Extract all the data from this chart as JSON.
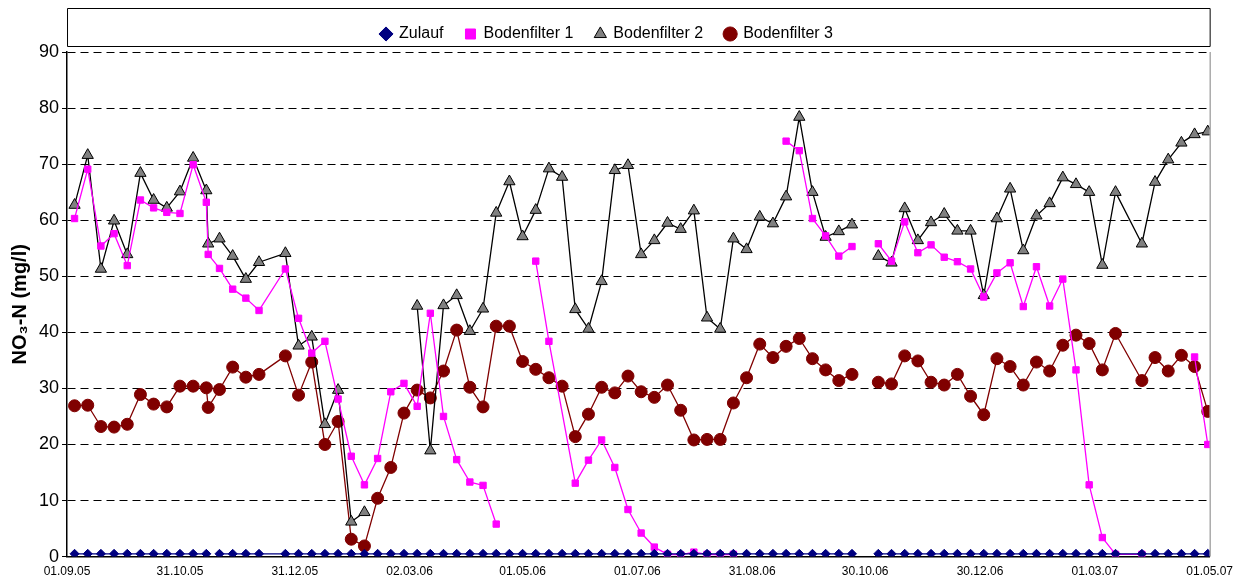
{
  "chart_data": {
    "type": "line",
    "ylabel": "NO₃-N (mg/l)",
    "x": [
      "2005-09-05",
      "2005-09-12",
      "2005-09-19",
      "2005-09-26",
      "2005-10-03",
      "2005-10-10",
      "2005-10-17",
      "2005-10-24",
      "2005-10-31",
      "2005-11-07",
      "2005-11-14",
      "2005-11-15",
      "2005-11-21",
      "2005-11-28",
      "2005-12-05",
      "2005-12-12",
      "2005-12-26",
      "2006-01-02",
      "2006-01-09",
      "2006-01-16",
      "2006-01-23",
      "2006-01-30",
      "2006-02-06",
      "2006-02-13",
      "2006-02-20",
      "2006-02-27",
      "2006-03-06",
      "2006-03-13",
      "2006-03-20",
      "2006-03-27",
      "2006-04-03",
      "2006-04-10",
      "2006-04-17",
      "2006-04-24",
      "2006-05-01",
      "2006-05-08",
      "2006-05-15",
      "2006-05-22",
      "2006-05-29",
      "2006-06-05",
      "2006-06-12",
      "2006-06-19",
      "2006-06-26",
      "2006-07-03",
      "2006-07-10",
      "2006-07-17",
      "2006-07-24",
      "2006-07-31",
      "2006-08-07",
      "2006-08-14",
      "2006-08-21",
      "2006-08-28",
      "2006-09-04",
      "2006-09-11",
      "2006-09-18",
      "2006-09-25",
      "2006-10-02",
      "2006-10-09",
      "2006-10-16",
      "2006-10-23",
      "2006-10-30",
      "2006-11-06",
      "2006-11-13",
      "2006-11-20",
      "2006-11-27",
      "2006-12-04",
      "2006-12-11",
      "2006-12-18",
      "2006-12-25",
      "2007-01-01",
      "2007-01-08",
      "2007-01-15",
      "2007-01-22",
      "2007-01-29",
      "2007-02-05",
      "2007-02-12",
      "2007-02-19",
      "2007-02-26",
      "2007-03-05",
      "2007-03-12",
      "2007-03-26",
      "2007-04-02",
      "2007-04-09",
      "2007-04-16",
      "2007-04-23",
      "2007-04-30"
    ],
    "series": [
      {
        "name": "Zulauf",
        "color": "#000080",
        "marker": "diamond",
        "values": [
          0.5,
          0.5,
          0.5,
          0.5,
          0.5,
          0.5,
          0.5,
          0.5,
          0.5,
          0.5,
          0.5,
          null,
          0.5,
          0.5,
          0.5,
          0.5,
          0.5,
          0.5,
          0.5,
          0.5,
          0.5,
          0.5,
          0.5,
          0.5,
          0.5,
          0.5,
          0.5,
          0.5,
          0.5,
          0.5,
          0.5,
          0.5,
          0.5,
          0.5,
          0.5,
          0.5,
          0.5,
          0.5,
          0.5,
          0.5,
          0.5,
          0.5,
          0.5,
          0.5,
          0.5,
          0.5,
          0.5,
          0.5,
          0.5,
          0.5,
          0.5,
          0.5,
          0.5,
          0.5,
          0.5,
          0.5,
          0.5,
          0.5,
          0.5,
          0.5,
          null,
          0.5,
          0.5,
          0.5,
          0.5,
          0.5,
          0.5,
          0.5,
          0.5,
          0.5,
          0.5,
          0.5,
          0.5,
          0.5,
          0.5,
          0.5,
          0.5,
          0.5,
          0.5,
          0.5,
          0.5,
          0.5,
          0.5,
          0.5,
          0.5,
          0.5
        ]
      },
      {
        "name": "Bodenfilter 1",
        "color": "#ff00ff",
        "marker": "square",
        "x": [
          "2005-09-05",
          "2005-09-12",
          "2005-09-19",
          "2005-09-26",
          "2005-10-03",
          "2005-10-10",
          "2005-10-17",
          "2005-10-24",
          "2005-10-31",
          "2005-11-07",
          "2005-11-14",
          "2005-11-15",
          "2005-11-21",
          "2005-11-28",
          "2005-12-05",
          "2005-12-12",
          "2005-12-26",
          "2006-01-02",
          "2006-01-09",
          "2006-01-16",
          "2006-01-23",
          "2006-01-30",
          "2006-02-06",
          "2006-02-13",
          "2006-02-20",
          "2006-02-27",
          "2006-03-06",
          "2006-03-13",
          "2006-03-20",
          "2006-03-27",
          "2006-04-03",
          "2006-04-10",
          "2006-04-17",
          "2006-04-24",
          "2006-05-01",
          "2006-05-08",
          "2006-05-15",
          "2006-05-29",
          "2006-06-05",
          "2006-06-12",
          "2006-06-19",
          "2006-06-26",
          "2006-07-03",
          "2006-07-10",
          "2006-07-17",
          "2006-07-24",
          "2006-07-31",
          "2006-08-07",
          "2006-08-14",
          "2006-08-21",
          "2006-08-28",
          "2006-09-04",
          "2006-09-11",
          "2006-09-18",
          "2006-09-25",
          "2006-10-02",
          "2006-10-09",
          "2006-10-16",
          "2006-10-23",
          "2006-10-30",
          "2006-11-06",
          "2006-11-13",
          "2006-11-20",
          "2006-11-27",
          "2006-12-04",
          "2006-12-11",
          "2006-12-18",
          "2006-12-25",
          "2007-01-01",
          "2007-01-08",
          "2007-01-15",
          "2007-01-22",
          "2007-01-29",
          "2007-02-05",
          "2007-02-12",
          "2007-02-19",
          "2007-02-26",
          "2007-03-05",
          "2007-03-12",
          "2007-03-26",
          "2007-04-02",
          "2007-04-09",
          "2007-04-16",
          "2007-04-23",
          "2007-04-30"
        ],
        "values": [
          60.3,
          69.1,
          55.4,
          57.6,
          51.9,
          63.6,
          62.2,
          61.4,
          61.2,
          69.9,
          63.2,
          53.9,
          51.4,
          47.7,
          46.1,
          43.9,
          51.3,
          42.5,
          36.3,
          38.4,
          28.1,
          17.9,
          12.8,
          17.5,
          29.4,
          30.9,
          26.8,
          43.4,
          25.0,
          17.3,
          13.3,
          12.7,
          5.8,
          null,
          null,
          52.7,
          38.4,
          13.1,
          17.2,
          20.8,
          15.9,
          8.4,
          4.2,
          1.7,
          0.4,
          0.3,
          0.8,
          0.4,
          0.3,
          0.4,
          null,
          null,
          null,
          74.1,
          72.4,
          60.3,
          57.2,
          53.6,
          55.3,
          null,
          55.8,
          52.7,
          59.7,
          54.2,
          55.6,
          53.4,
          52.6,
          51.3,
          46.3,
          50.6,
          52.4,
          44.6,
          51.7,
          44.7,
          49.5,
          33.3,
          12.8,
          3.4,
          0.4,
          0.4,
          null,
          null,
          null,
          35.6,
          20.0
        ]
      },
      {
        "name": "Bodenfilter 2",
        "color": "#000000",
        "marker": "triangle",
        "values": [
          62.7,
          71.6,
          51.3,
          59.9,
          53.9,
          68.4,
          63.6,
          62.2,
          65.1,
          71.1,
          65.3,
          55.8,
          56.7,
          53.6,
          49.5,
          52.5,
          54.1,
          37.6,
          39.2,
          23.6,
          29.7,
          6.2,
          7.9,
          null,
          null,
          null,
          44.7,
          18.9,
          44.8,
          46.6,
          40.2,
          44.2,
          61.3,
          66.9,
          57.1,
          61.8,
          69.2,
          67.7,
          44.1,
          40.6,
          49.1,
          68.9,
          69.8,
          53.9,
          56.4,
          59.5,
          58.4,
          61.7,
          42.6,
          40.6,
          56.7,
          54.8,
          60.6,
          59.4,
          64.2,
          78.4,
          65.0,
          57.0,
          58.0,
          59.2,
          null,
          53.6,
          52.4,
          62.1,
          56.4,
          59.6,
          61.1,
          58.1,
          58.1,
          46.6,
          60.3,
          65.6,
          54.6,
          60.8,
          63.0,
          67.6,
          66.4,
          65.0,
          52.0,
          65.0,
          55.8,
          66.8,
          70.8,
          73.8,
          75.3,
          75.8
        ]
      },
      {
        "name": "Bodenfilter 3",
        "color": "#800000",
        "marker": "circle",
        "values": [
          26.9,
          27.0,
          23.2,
          23.1,
          23.6,
          28.9,
          27.2,
          26.7,
          30.4,
          30.4,
          30.1,
          26.6,
          29.8,
          33.8,
          32.0,
          32.5,
          35.8,
          28.8,
          34.7,
          20.0,
          24.1,
          3.1,
          1.9,
          10.4,
          15.9,
          25.6,
          29.7,
          28.3,
          33.1,
          40.4,
          30.2,
          26.7,
          41.1,
          41.1,
          34.8,
          33.4,
          31.9,
          30.4,
          21.4,
          25.4,
          30.2,
          29.2,
          32.2,
          29.4,
          28.4,
          30.6,
          26.1,
          20.8,
          20.9,
          20.9,
          27.4,
          31.9,
          37.9,
          35.5,
          37.5,
          38.9,
          35.3,
          33.3,
          31.4,
          32.5,
          null,
          31.1,
          30.8,
          35.8,
          34.9,
          31.1,
          30.6,
          32.5,
          28.6,
          25.3,
          35.3,
          33.9,
          30.6,
          34.7,
          33.1,
          37.7,
          39.5,
          38.0,
          33.3,
          39.8,
          31.4,
          35.5,
          33.1,
          35.9,
          33.9,
          25.9
        ]
      }
    ],
    "xlim": [
      "2005-09-01",
      "2007-05-01"
    ],
    "xticks": [
      {
        "value": "2005-09-01",
        "label": "01.09.05"
      },
      {
        "value": "2005-10-31",
        "label": "31.10.05"
      },
      {
        "value": "2005-12-31",
        "label": "31.12.05"
      },
      {
        "value": "2006-03-02",
        "label": "02.03.06"
      },
      {
        "value": "2006-05-01",
        "label": "01.05.06"
      },
      {
        "value": "2006-07-01",
        "label": "01.07.06"
      },
      {
        "value": "2006-08-31",
        "label": "31.08.06"
      },
      {
        "value": "2006-10-30",
        "label": "30.10.06"
      },
      {
        "value": "2006-12-30",
        "label": "30.12.06"
      },
      {
        "value": "2007-03-01",
        "label": "01.03.07"
      },
      {
        "value": "2007-05-01",
        "label": "01.05.07"
      }
    ],
    "ylim": [
      0,
      90
    ],
    "yticks": [
      0,
      10,
      20,
      30,
      40,
      50,
      60,
      70,
      80,
      90
    ],
    "grid": "y",
    "legend": "top",
    "line_style": "solid"
  }
}
